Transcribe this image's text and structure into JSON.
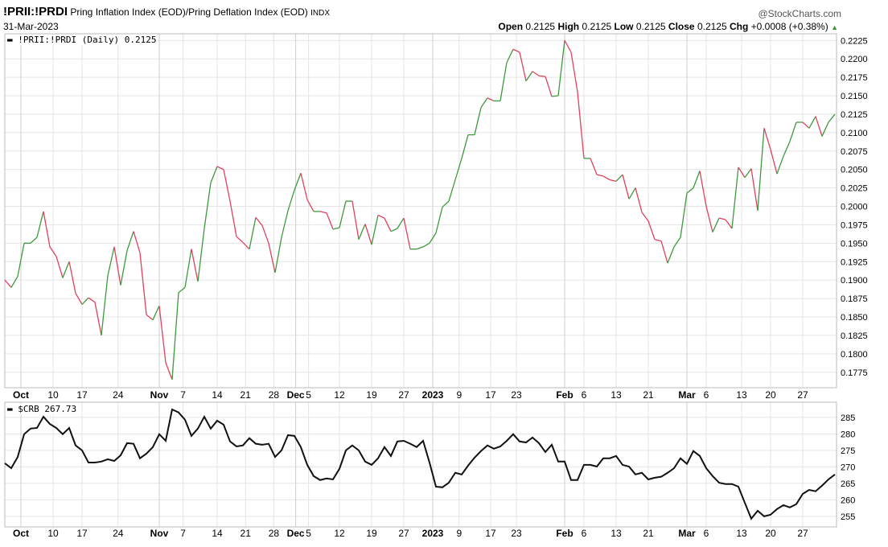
{
  "header": {
    "symbol": "!PRII:!PRDI",
    "name": "Pring Inflation Index (EOD)/Pring Deflation Index (EOD)",
    "exchange": "INDX",
    "date": "31-Mar-2023",
    "brand": "@StockCharts.com",
    "ohlc": {
      "open_label": "Open",
      "open": "0.2125",
      "high_label": "High",
      "high": "0.2125",
      "low_label": "Low",
      "low": "0.2125",
      "close_label": "Close",
      "close": "0.2125",
      "chg_label": "Chg",
      "chg": "+0.0008 (+0.38%)",
      "chg_icon": "triangle-up-icon"
    }
  },
  "chart_data": [
    {
      "type": "line",
      "legend": "!PRII:!PRDI (Daily) 0.2125",
      "up_color": "#3d9a3d",
      "down_color": "#e2405e",
      "ylim": [
        0.1754,
        0.2234
      ],
      "yticks": [
        "0.2225",
        "0.2200",
        "0.2175",
        "0.2150",
        "0.2125",
        "0.2100",
        "0.2075",
        "0.2050",
        "0.2025",
        "0.2000",
        "0.1975",
        "0.1950",
        "0.1925",
        "0.1900",
        "0.1875",
        "0.1850",
        "0.1825",
        "0.1800",
        "0.1775"
      ],
      "values": [
        0.19,
        0.189,
        0.1905,
        0.195,
        0.195,
        0.1958,
        0.1993,
        0.1945,
        0.1932,
        0.1903,
        0.1925,
        0.1882,
        0.1867,
        0.1876,
        0.187,
        0.1825,
        0.1906,
        0.1945,
        0.1893,
        0.194,
        0.1966,
        0.1937,
        0.1853,
        0.1846,
        0.1865,
        0.1788,
        0.1765,
        0.1883,
        0.189,
        0.1942,
        0.1898,
        0.197,
        0.2032,
        0.2054,
        0.205,
        0.2007,
        0.1959,
        0.1951,
        0.1942,
        0.1985,
        0.1974,
        0.195,
        0.191,
        0.1958,
        0.1994,
        0.2022,
        0.2045,
        0.2009,
        0.1993,
        0.1993,
        0.1991,
        0.1969,
        0.1971,
        0.2007,
        0.2007,
        0.1955,
        0.1976,
        0.1948,
        0.1988,
        0.1984,
        0.1966,
        0.197,
        0.1984,
        0.1942,
        0.1942,
        0.1945,
        0.195,
        0.1964,
        0.1999,
        0.2007,
        0.2036,
        0.2065,
        0.2097,
        0.2097,
        0.2134,
        0.2147,
        0.2143,
        0.2143,
        0.2195,
        0.2213,
        0.2209,
        0.217,
        0.2183,
        0.2177,
        0.2176,
        0.2149,
        0.215,
        0.2225,
        0.2209,
        0.2155,
        0.2065,
        0.2065,
        0.2043,
        0.2041,
        0.2036,
        0.2034,
        0.2043,
        0.201,
        0.2025,
        0.1992,
        0.198,
        0.1955,
        0.1953,
        0.1923,
        0.1945,
        0.1958,
        0.2018,
        0.2025,
        0.2048,
        0.2,
        0.1965,
        0.1984,
        0.1982,
        0.197,
        0.2053,
        0.2039,
        0.2051,
        0.1994,
        0.2106,
        0.2077,
        0.2044,
        0.2068,
        0.2088,
        0.2114,
        0.2114,
        0.2106,
        0.2122,
        0.2095,
        0.2114,
        0.2125
      ]
    },
    {
      "type": "line",
      "legend": "$CRB 267.73",
      "color": "#111111",
      "ylim": [
        251.8,
        289.6
      ],
      "yticks": [
        "285",
        "280",
        "275",
        "270",
        "265",
        "260",
        "255"
      ],
      "values": [
        271.1,
        269.6,
        273.0,
        279.9,
        281.6,
        281.8,
        285.2,
        283.0,
        281.8,
        279.9,
        281.8,
        276.5,
        275.0,
        271.3,
        271.3,
        271.6,
        272.3,
        271.8,
        273.5,
        277.2,
        277.0,
        272.6,
        274.0,
        276.0,
        279.9,
        277.9,
        287.4,
        286.5,
        284.3,
        279.4,
        281.6,
        285.2,
        281.6,
        284.0,
        282.8,
        277.7,
        276.2,
        276.5,
        278.7,
        277.0,
        276.7,
        277.0,
        273.0,
        275.0,
        279.6,
        279.4,
        276.0,
        270.6,
        267.2,
        266.0,
        266.5,
        266.2,
        269.4,
        275.0,
        276.5,
        275.0,
        271.6,
        270.6,
        272.6,
        276.0,
        273.3,
        277.7,
        277.9,
        277.0,
        276.0,
        277.9,
        271.3,
        264.0,
        263.8,
        265.2,
        268.2,
        267.7,
        270.4,
        272.8,
        274.8,
        276.5,
        275.5,
        276.2,
        277.9,
        279.9,
        277.7,
        277.4,
        278.9,
        277.2,
        274.5,
        276.7,
        271.6,
        271.6,
        266.0,
        266.0,
        270.6,
        270.6,
        270.1,
        272.6,
        272.6,
        273.3,
        270.6,
        270.1,
        267.7,
        268.2,
        266.2,
        266.7,
        267.0,
        268.2,
        269.6,
        272.6,
        270.9,
        274.8,
        273.3,
        269.6,
        267.2,
        265.2,
        264.8,
        264.8,
        264.0,
        259.1,
        254.3,
        256.7,
        255.0,
        255.5,
        257.2,
        258.4,
        257.7,
        258.7,
        261.8,
        263.0,
        262.6,
        264.3,
        266.2,
        267.7
      ]
    }
  ],
  "xticks": [
    {
      "label": "Oct",
      "bar": 2.5,
      "major": true
    },
    {
      "label": "10",
      "bar": 7.5
    },
    {
      "label": "17",
      "bar": 12
    },
    {
      "label": "24",
      "bar": 17.6
    },
    {
      "label": "Nov",
      "bar": 24,
      "major": true
    },
    {
      "label": "7",
      "bar": 27.7
    },
    {
      "label": "14",
      "bar": 33
    },
    {
      "label": "21",
      "bar": 37.4
    },
    {
      "label": "28",
      "bar": 41.8
    },
    {
      "label": "Dec",
      "bar": 45.2,
      "major": true
    },
    {
      "label": "5",
      "bar": 47.2
    },
    {
      "label": "12",
      "bar": 52
    },
    {
      "label": "19",
      "bar": 57
    },
    {
      "label": "27",
      "bar": 62
    },
    {
      "label": "2023",
      "bar": 66.5,
      "major": true
    },
    {
      "label": "9",
      "bar": 70.6
    },
    {
      "label": "17",
      "bar": 75.5
    },
    {
      "label": "23",
      "bar": 79.5
    },
    {
      "label": "Feb",
      "bar": 87,
      "major": true
    },
    {
      "label": "6",
      "bar": 90
    },
    {
      "label": "13",
      "bar": 95
    },
    {
      "label": "21",
      "bar": 100
    },
    {
      "label": "Mar",
      "bar": 106,
      "major": true
    },
    {
      "label": "6",
      "bar": 109
    },
    {
      "label": "13",
      "bar": 114.5
    },
    {
      "label": "20",
      "bar": 119
    },
    {
      "label": "27",
      "bar": 124
    }
  ]
}
